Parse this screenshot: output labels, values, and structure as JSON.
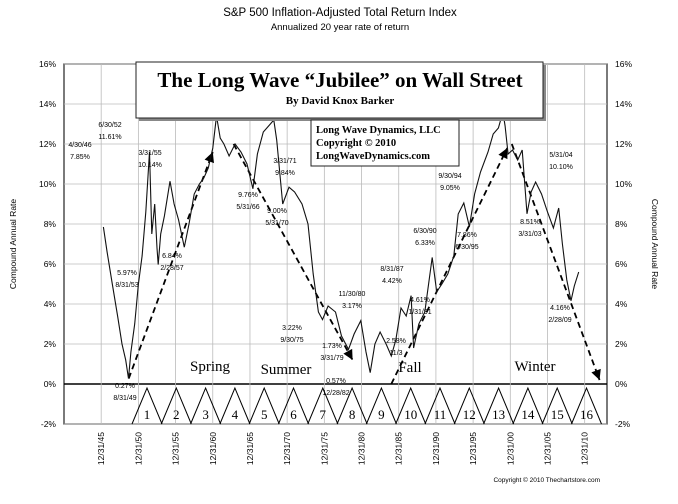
{
  "chart_data": {
    "type": "line",
    "title": "S&P 500 Inflation-Adjusted Total Return Index",
    "subtitle": "Annualized 20 year rate of return",
    "ylabel_left": "Compound Annual Rate",
    "ylabel_right": "Compound Annual Rate",
    "ylim": [
      -2,
      16
    ],
    "yticks": [
      "16%",
      "14%",
      "12%",
      "10%",
      "8%",
      "6%",
      "4%",
      "2%",
      "0%",
      "-2%"
    ],
    "ytick_values": [
      16,
      14,
      12,
      10,
      8,
      6,
      4,
      2,
      0,
      -2
    ],
    "xlim": [
      1941,
      2014
    ],
    "xticks": [
      "12/31/45",
      "12/31/50",
      "12/31/55",
      "12/31/60",
      "12/31/65",
      "12/31/70",
      "12/31/75",
      "12/31/80",
      "12/31/85",
      "12/31/90",
      "12/31/95",
      "12/31/00",
      "12/31/05",
      "12/31/10"
    ],
    "xtick_values": [
      1946,
      1951,
      1956,
      1961,
      1966,
      1971,
      1976,
      1981,
      1986,
      1991,
      1996,
      2001,
      2006,
      2011
    ],
    "grid": true,
    "series": [
      {
        "x": [
          1946.3,
          1946.8,
          1947.5,
          1948.2,
          1948.8,
          1949.3,
          1949.67,
          1950.0,
          1950.5,
          1951.0,
          1951.5,
          1952.0,
          1952.5,
          1952.8,
          1953.2,
          1953.5,
          1953.67,
          1954.0,
          1954.5,
          1955.25,
          1955.8,
          1956.4,
          1957.17,
          1957.8,
          1958.5,
          1959.2,
          1959.8,
          1960.4,
          1961.0,
          1961.5,
          1962.0,
          1962.5,
          1963.2,
          1964.0,
          1964.8,
          1965.6,
          1966.4,
          1967.0,
          1967.8,
          1968.5,
          1969.2,
          1969.6,
          1970.4,
          1971.25,
          1972.0,
          1973.0,
          1973.8,
          1974.5,
          1975.2,
          1975.75,
          1976.5,
          1977.5,
          1978.3,
          1979.25,
          1980.0,
          1980.9,
          1981.6,
          1982.16,
          1982.8,
          1983.5,
          1984.3,
          1985.0,
          1985.6,
          1986.3,
          1987.0,
          1987.67,
          1988.0,
          1988.7,
          1989.5,
          1990.5,
          1991.1,
          1991.8,
          1992.6,
          1993.4,
          1994.0,
          1994.75,
          1995.5,
          1996.2,
          1997.0,
          1998.0,
          1998.7,
          1999.4,
          2000.0,
          2000.3,
          2000.7,
          2001.3,
          2002.0,
          2002.6,
          2003.25,
          2003.8,
          2004.4,
          2005.2,
          2006.0,
          2006.8,
          2007.5,
          2008.0,
          2008.6,
          2009.16,
          2009.6,
          2010.2
        ],
        "y": [
          7.85,
          6.6,
          5.0,
          3.4,
          2.0,
          1.2,
          0.27,
          1.6,
          3.0,
          5.0,
          6.4,
          8.6,
          11.61,
          7.5,
          9.0,
          6.8,
          5.97,
          7.5,
          8.4,
          10.14,
          9.0,
          8.2,
          6.84,
          8.0,
          9.5,
          10.0,
          10.3,
          10.8,
          11.8,
          13.4,
          12.3,
          12.0,
          11.4,
          12.0,
          11.6,
          11.0,
          9.76,
          11.5,
          12.6,
          12.9,
          13.2,
          12.2,
          9.0,
          9.84,
          9.6,
          9.0,
          8.0,
          5.5,
          3.6,
          3.22,
          3.9,
          3.6,
          2.4,
          1.73,
          2.5,
          3.17,
          1.6,
          0.57,
          2.0,
          2.6,
          2.0,
          1.4,
          2.2,
          3.8,
          3.4,
          4.42,
          1.8,
          3.0,
          3.6,
          6.33,
          4.61,
          5.0,
          5.5,
          6.4,
          8.5,
          9.05,
          7.86,
          9.5,
          10.6,
          11.6,
          12.5,
          12.8,
          13.6,
          12.9,
          11.5,
          11.7,
          11.2,
          11.7,
          8.51,
          9.6,
          10.1,
          9.5,
          8.6,
          7.8,
          8.8,
          7.0,
          5.2,
          4.16,
          4.9,
          5.6
        ]
      }
    ],
    "trend_arrows": [
      {
        "from": [
          1949.7,
          0.27
        ],
        "to": [
          1961.0,
          11.6
        ]
      },
      {
        "from": [
          1963.8,
          12.0
        ],
        "to": [
          1979.8,
          1.2
        ]
      },
      {
        "from": [
          1985.0,
          0.0
        ],
        "to": [
          2000.6,
          11.8
        ]
      },
      {
        "from": [
          2001.2,
          12.0
        ],
        "to": [
          2013.0,
          0.2
        ]
      }
    ],
    "annotations": [
      [
        "4/30/46",
        "7.85%"
      ],
      [
        "6/30/52",
        "11.61%"
      ],
      [
        "3/31/55",
        "10.14%"
      ],
      [
        "5.97%",
        "8/31/53"
      ],
      [
        "6.84%",
        "2/28/57"
      ],
      [
        "9.76%",
        "5/31/66"
      ],
      [
        "9.00%",
        "5/31/70"
      ],
      [
        "3/31/71",
        "9.84%"
      ],
      [
        "3.22%",
        "9/30/75"
      ],
      [
        "1.73%",
        "3/31/79"
      ],
      [
        "11/30/80",
        "3.17%"
      ],
      [
        "0.57%",
        "12/28/82"
      ],
      [
        "0.27%",
        "8/31/49"
      ],
      [
        "8/31/87",
        "4.42%"
      ],
      [
        "6/30/90",
        "6.33%"
      ],
      [
        "2.58%",
        "11/3"
      ],
      [
        "4.61%",
        "1/31/91"
      ],
      [
        "9/30/94",
        "9.05%"
      ],
      [
        "7.86%",
        "6/30/95"
      ],
      [
        "5/31/04",
        "10.10%"
      ],
      [
        "8.51%",
        "3/31/03"
      ],
      [
        "4.16%",
        "2/28/09"
      ]
    ],
    "seasons": [
      "Spring",
      "Summer",
      "Fall",
      "Winter"
    ],
    "cycle_numbers": [
      "1",
      "2",
      "3",
      "4",
      "5",
      "6",
      "7",
      "8",
      "9",
      "10",
      "11",
      "12",
      "13",
      "14",
      "15",
      "16"
    ]
  },
  "title_box": {
    "title": "The Long Wave “Jubilee” on Wall Street",
    "byline": "By David Knox Barker"
  },
  "credit_box": {
    "line1": "Long Wave Dynamics, LLC",
    "line2": "Copyright © 2010",
    "line3": "LongWaveDynamics.com"
  },
  "footer_copyright": "Copyright © 2010 Thechartstore.com"
}
